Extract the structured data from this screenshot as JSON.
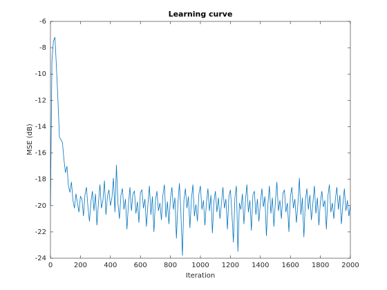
{
  "chart_data": {
    "type": "line",
    "title": "Learning curve",
    "x_label": "Iteration",
    "y_label": "MSE (dB)",
    "xlim": [
      0,
      2000
    ],
    "xticks": [
      0,
      200,
      400,
      600,
      800,
      1000,
      1200,
      1400,
      1600,
      1800,
      2000
    ],
    "ylim": [
      -24,
      -6
    ],
    "yticks": [
      -24,
      -22,
      -20,
      -18,
      -16,
      -14,
      -12,
      -10,
      -8,
      -6
    ],
    "grid": false,
    "x": [
      0,
      10,
      20,
      30,
      40,
      50,
      60,
      70,
      80,
      90,
      100,
      110,
      120,
      130,
      140,
      150,
      160,
      170,
      180,
      190,
      200,
      210,
      220,
      230,
      240,
      250,
      260,
      270,
      280,
      290,
      300,
      310,
      320,
      330,
      340,
      350,
      360,
      370,
      380,
      390,
      400,
      410,
      420,
      430,
      440,
      450,
      460,
      470,
      480,
      490,
      500,
      510,
      520,
      530,
      540,
      550,
      560,
      570,
      580,
      590,
      600,
      610,
      620,
      630,
      640,
      650,
      660,
      670,
      680,
      690,
      700,
      710,
      720,
      730,
      740,
      750,
      760,
      770,
      780,
      790,
      800,
      810,
      820,
      830,
      840,
      850,
      860,
      870,
      880,
      890,
      900,
      910,
      920,
      930,
      940,
      950,
      960,
      970,
      980,
      990,
      1000,
      1010,
      1020,
      1030,
      1040,
      1050,
      1060,
      1070,
      1080,
      1090,
      1100,
      1110,
      1120,
      1130,
      1140,
      1150,
      1160,
      1170,
      1180,
      1190,
      1200,
      1210,
      1220,
      1230,
      1240,
      1250,
      1260,
      1270,
      1280,
      1290,
      1300,
      1310,
      1320,
      1330,
      1340,
      1350,
      1360,
      1370,
      1380,
      1390,
      1400,
      1410,
      1420,
      1430,
      1440,
      1450,
      1460,
      1470,
      1480,
      1490,
      1500,
      1510,
      1520,
      1530,
      1540,
      1550,
      1560,
      1570,
      1580,
      1590,
      1600,
      1610,
      1620,
      1630,
      1640,
      1650,
      1660,
      1670,
      1680,
      1690,
      1700,
      1710,
      1720,
      1730,
      1740,
      1750,
      1760,
      1770,
      1780,
      1790,
      1800,
      1810,
      1820,
      1830,
      1840,
      1850,
      1860,
      1870,
      1880,
      1890,
      1900,
      1910,
      1920,
      1930,
      1940,
      1950,
      1960,
      1970,
      1980,
      1990,
      2000
    ],
    "series": [
      {
        "name": "MSE",
        "color": "#0072bd",
        "values": [
          -20,
          -9,
          -7.5,
          -7.2,
          -9.5,
          -12,
          -14.8,
          -15,
          -15.2,
          -16.5,
          -17.5,
          -17,
          -18.5,
          -19,
          -18.2,
          -19.6,
          -20.2,
          -19.1,
          -19.8,
          -20.5,
          -19.3,
          -19.5,
          -20.8,
          -19.2,
          -18.6,
          -20.1,
          -21.2,
          -19.7,
          -18.9,
          -20.4,
          -19.1,
          -21.5,
          -19.8,
          -18.4,
          -20.2,
          -19.6,
          -18.1,
          -20.7,
          -19.3,
          -18.8,
          -20.0,
          -19.4,
          -17.9,
          -20.5,
          -16.9,
          -19.8,
          -21.0,
          -19.2,
          -18.7,
          -20.3,
          -19.5,
          -21.8,
          -19.9,
          -18.6,
          -20.4,
          -19.1,
          -18.9,
          -20.6,
          -19.7,
          -21.3,
          -19.0,
          -18.8,
          -20.2,
          -19.5,
          -21.6,
          -19.9,
          -18.5,
          -20.7,
          -19.3,
          -22.0,
          -19.6,
          -18.9,
          -20.4,
          -19.8,
          -21.1,
          -19.2,
          -18.4,
          -20.9,
          -19.7,
          -21.4,
          -19.5,
          -18.6,
          -20.3,
          -19.4,
          -22.5,
          -19.8,
          -18.3,
          -20.6,
          -23.8,
          -19.6,
          -18.7,
          -20.2,
          -19.3,
          -21.7,
          -19.5,
          -18.4,
          -20.8,
          -19.9,
          -21.2,
          -19.1,
          -18.5,
          -20.3,
          -19.6,
          -21.5,
          -19.8,
          -18.7,
          -20.4,
          -19.2,
          -22.1,
          -19.7,
          -18.9,
          -20.5,
          -19.4,
          -21.0,
          -19.9,
          -18.6,
          -20.2,
          -19.5,
          -21.8,
          -19.3,
          -18.8,
          -20.6,
          -22.8,
          -19.4,
          -18.5,
          -23.5,
          -19.8,
          -20.3,
          -19.1,
          -21.4,
          -19.7,
          -18.4,
          -20.5,
          -19.6,
          -21.9,
          -19.2,
          -18.9,
          -20.7,
          -19.5,
          -21.2,
          -19.8,
          -18.7,
          -20.1,
          -19.3,
          -22.3,
          -19.9,
          -18.5,
          -20.6,
          -19.4,
          -21.6,
          -19.7,
          -18.2,
          -20.4,
          -19.6,
          -21.0,
          -19.1,
          -18.8,
          -20.5,
          -19.8,
          -22.0,
          -19.3,
          -18.6,
          -20.2,
          -19.5,
          -21.3,
          -19.9,
          -17.9,
          -20.7,
          -19.4,
          -22.4,
          -19.6,
          -18.7,
          -20.3,
          -19.2,
          -21.1,
          -19.8,
          -18.5,
          -20.6,
          -19.4,
          -21.5,
          -19.7,
          -18.9,
          -20.1,
          -19.6,
          -21.8,
          -19.3,
          -18.4,
          -20.5,
          -19.8,
          -21.0,
          -19.5,
          -18.6,
          -20.3,
          -19.2,
          -21.4,
          -19.9,
          -18.7,
          -20.4,
          -19.6,
          -20.8,
          -20.0
        ]
      }
    ]
  }
}
